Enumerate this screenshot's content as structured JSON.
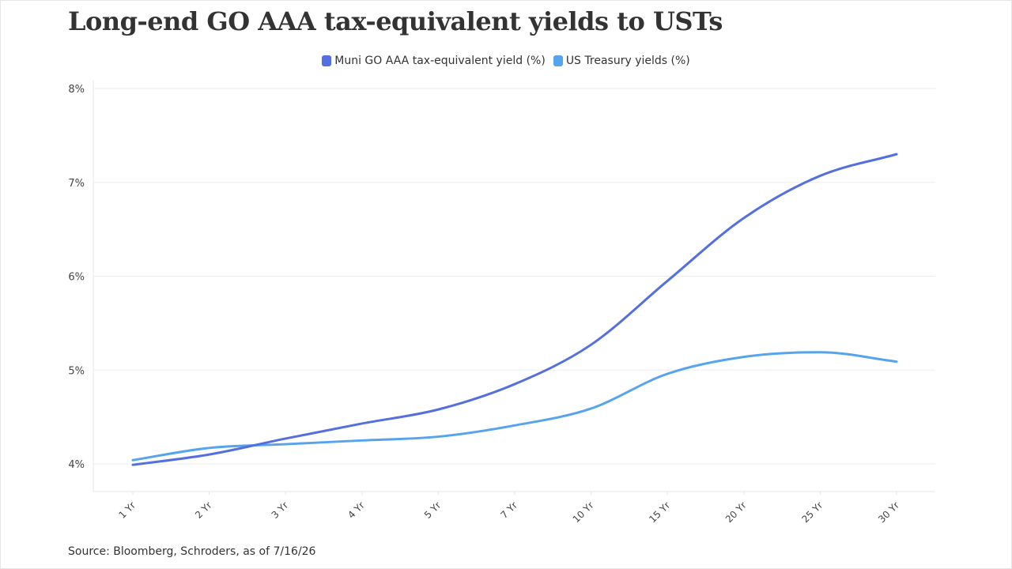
{
  "title": "Long-end GO AAA tax-equivalent yields to USTs",
  "source": "Source: Bloomberg, Schroders, as of 7/16/26",
  "chart_data": {
    "type": "line",
    "title": "Long-end GO AAA tax-equivalent yields to USTs",
    "categories": [
      "1 Yr",
      "2 Yr",
      "3 Yr",
      "4 Yr",
      "5 Yr",
      "7 Yr",
      "10 Yr",
      "15 Yr",
      "20 Yr",
      "25 Yr",
      "30 Yr"
    ],
    "series": [
      {
        "name": "Muni GO AAA tax-equivalent yield (%)",
        "color": "#5470e0",
        "values": [
          3.99,
          4.1,
          4.27,
          4.43,
          4.58,
          4.85,
          5.27,
          5.95,
          6.62,
          7.07,
          7.3
        ]
      },
      {
        "name": "US Treasury yields (%)",
        "color": "#57a4ee",
        "values": [
          4.04,
          4.17,
          4.21,
          4.25,
          4.29,
          4.41,
          4.59,
          4.96,
          5.14,
          5.19,
          5.09
        ]
      }
    ],
    "y_ticks": [
      "4%",
      "5%",
      "6%",
      "7%",
      "8%"
    ],
    "ylim": [
      3.7,
      8.0
    ],
    "grid": true,
    "legend_position": "top-center"
  }
}
